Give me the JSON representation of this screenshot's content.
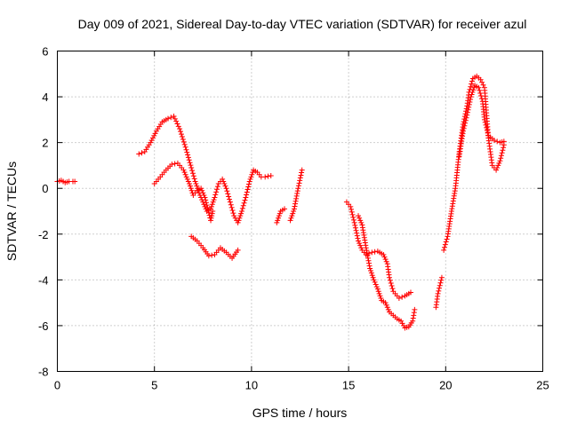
{
  "chart_data": {
    "type": "scatter",
    "title": "Day 009 of 2021, Sidereal Day-to-day VTEC variation (SDTVAR) for receiver azul",
    "xlabel": "GPS time / hours",
    "ylabel": "SDTVAR / TECUs",
    "xlim": [
      0,
      25
    ],
    "ylim": [
      -8,
      6
    ],
    "xticks": [
      0,
      5,
      10,
      15,
      20,
      25
    ],
    "yticks": [
      -8,
      -6,
      -4,
      -2,
      0,
      2,
      4,
      6
    ],
    "grid": true,
    "marker": "plus",
    "color": "#ff0000",
    "series": [
      {
        "segments": [
          [
            [
              0.0,
              0.3
            ],
            [
              0.2,
              0.35
            ],
            [
              0.4,
              0.25
            ],
            [
              0.6,
              0.3
            ],
            [
              0.8,
              0.3
            ],
            [
              0.9,
              0.3
            ]
          ],
          [
            [
              4.2,
              1.5
            ],
            [
              4.5,
              1.6
            ],
            [
              4.8,
              2.0
            ],
            [
              5.1,
              2.5
            ],
            [
              5.4,
              2.9
            ],
            [
              5.7,
              3.05
            ],
            [
              6.0,
              3.15
            ],
            [
              6.3,
              2.6
            ],
            [
              6.6,
              1.8
            ],
            [
              6.9,
              0.9
            ],
            [
              7.1,
              0.3
            ],
            [
              7.3,
              -0.2
            ],
            [
              7.5,
              -0.6
            ],
            [
              7.7,
              -1.0
            ],
            [
              7.9,
              -0.9
            ],
            [
              8.1,
              -0.4
            ],
            [
              8.3,
              0.2
            ],
            [
              8.5,
              0.4
            ],
            [
              8.7,
              0.0
            ],
            [
              8.9,
              -0.6
            ],
            [
              9.1,
              -1.2
            ],
            [
              9.3,
              -1.5
            ],
            [
              9.5,
              -1.0
            ],
            [
              9.7,
              -0.4
            ],
            [
              9.9,
              0.3
            ],
            [
              10.1,
              0.8
            ],
            [
              10.3,
              0.7
            ],
            [
              10.5,
              0.5
            ],
            [
              10.7,
              0.5
            ],
            [
              11.0,
              0.55
            ]
          ],
          [
            [
              5.0,
              0.2
            ],
            [
              5.3,
              0.5
            ],
            [
              5.6,
              0.8
            ],
            [
              5.9,
              1.05
            ],
            [
              6.2,
              1.1
            ],
            [
              6.5,
              0.8
            ],
            [
              6.8,
              0.2
            ],
            [
              7.0,
              -0.3
            ],
            [
              7.2,
              -0.1
            ],
            [
              7.4,
              0.0
            ],
            [
              7.6,
              -0.4
            ],
            [
              7.9,
              -1.4
            ],
            [
              8.0,
              -1.0
            ]
          ],
          [
            [
              6.9,
              -2.1
            ],
            [
              7.2,
              -2.3
            ],
            [
              7.5,
              -2.6
            ],
            [
              7.8,
              -2.95
            ],
            [
              8.1,
              -2.9
            ],
            [
              8.4,
              -2.6
            ],
            [
              8.7,
              -2.8
            ],
            [
              9.0,
              -3.05
            ],
            [
              9.3,
              -2.7
            ]
          ],
          [
            [
              11.3,
              -1.5
            ],
            [
              11.5,
              -1.0
            ],
            [
              11.7,
              -0.9
            ]
          ],
          [
            [
              12.0,
              -1.4
            ],
            [
              12.2,
              -0.9
            ],
            [
              12.4,
              0.0
            ],
            [
              12.6,
              0.8
            ]
          ],
          [
            [
              14.9,
              -0.6
            ],
            [
              15.1,
              -0.8
            ],
            [
              15.3,
              -1.5
            ],
            [
              15.5,
              -2.3
            ],
            [
              15.7,
              -2.7
            ],
            [
              15.9,
              -2.9
            ],
            [
              16.2,
              -2.8
            ],
            [
              16.5,
              -2.75
            ],
            [
              16.8,
              -2.9
            ],
            [
              17.0,
              -3.3
            ],
            [
              17.1,
              -3.9
            ],
            [
              17.3,
              -4.5
            ],
            [
              17.6,
              -4.8
            ],
            [
              17.9,
              -4.7
            ],
            [
              18.2,
              -4.55
            ]
          ],
          [
            [
              15.5,
              -1.2
            ],
            [
              15.7,
              -1.6
            ],
            [
              15.9,
              -2.6
            ],
            [
              16.1,
              -3.5
            ],
            [
              16.3,
              -4.0
            ],
            [
              16.5,
              -4.4
            ],
            [
              16.7,
              -4.9
            ],
            [
              16.9,
              -5.0
            ],
            [
              17.1,
              -5.4
            ],
            [
              17.3,
              -5.55
            ],
            [
              17.5,
              -5.7
            ],
            [
              17.7,
              -5.8
            ],
            [
              17.9,
              -6.1
            ],
            [
              18.1,
              -6.05
            ],
            [
              18.3,
              -5.8
            ],
            [
              18.4,
              -5.3
            ]
          ],
          [
            [
              19.5,
              -5.2
            ],
            [
              19.6,
              -4.6
            ],
            [
              19.8,
              -3.9
            ]
          ],
          [
            [
              19.9,
              -2.7
            ],
            [
              20.1,
              -2.1
            ],
            [
              20.3,
              -1.0
            ],
            [
              20.5,
              0.0
            ],
            [
              20.6,
              0.8
            ],
            [
              20.7,
              1.6
            ],
            [
              20.9,
              2.8
            ],
            [
              21.1,
              3.6
            ],
            [
              21.2,
              4.2
            ],
            [
              21.4,
              4.8
            ],
            [
              21.6,
              4.9
            ],
            [
              21.8,
              4.75
            ],
            [
              22.0,
              4.4
            ],
            [
              22.1,
              3.3
            ],
            [
              22.2,
              2.2
            ],
            [
              22.4,
              1.0
            ],
            [
              22.6,
              0.8
            ],
            [
              22.8,
              1.2
            ],
            [
              23.0,
              1.9
            ]
          ],
          [
            [
              20.7,
              1.4
            ],
            [
              20.9,
              2.5
            ],
            [
              21.1,
              3.2
            ],
            [
              21.3,
              4.0
            ],
            [
              21.5,
              4.5
            ],
            [
              21.7,
              4.4
            ],
            [
              21.9,
              3.8
            ],
            [
              22.0,
              3.0
            ],
            [
              22.2,
              2.3
            ],
            [
              22.5,
              2.1
            ],
            [
              22.8,
              2.0
            ],
            [
              23.0,
              2.05
            ]
          ]
        ]
      }
    ]
  }
}
